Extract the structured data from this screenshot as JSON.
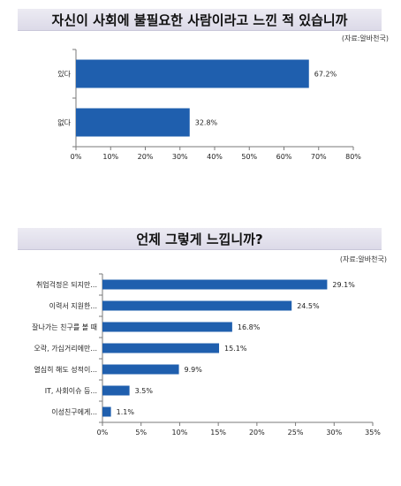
{
  "charts": {
    "colors": {
      "bar": "#1f5fae",
      "axis": "#7a7a7a"
    }
  },
  "chart_data": [
    {
      "type": "bar",
      "orientation": "horizontal",
      "title": "자신이 사회에 불필요한 사람이라고 느낀 적 있습니까",
      "source": "(자료:알바천국)",
      "categories": [
        "있다",
        "없다"
      ],
      "values": [
        67.2,
        32.8
      ],
      "value_labels": [
        "67.2%",
        "32.8%"
      ],
      "xlim": [
        0,
        80
      ],
      "xticks": [
        "0%",
        "10%",
        "20%",
        "30%",
        "40%",
        "50%",
        "60%",
        "70%",
        "80%"
      ],
      "grid": false,
      "legend": "none"
    },
    {
      "type": "bar",
      "orientation": "horizontal",
      "title": "언제 그렇게 느낍니까?",
      "source": "(자료:알바천국)",
      "categories": [
        "취업걱정은 되지만...",
        "이력서 지원한...",
        "잘나가는 친구를 볼 때",
        "오락, 가십거리에만...",
        "열심히 해도 성적이...",
        "IT, 사회이슈 등...",
        "이성친구에게..."
      ],
      "values": [
        29.1,
        24.5,
        16.8,
        15.1,
        9.9,
        3.5,
        1.1
      ],
      "value_labels": [
        "29.1%",
        "24.5%",
        "16.8%",
        "15.1%",
        "9.9%",
        "3.5%",
        "1.1%"
      ],
      "xlim": [
        0,
        35
      ],
      "xticks": [
        "0%",
        "5%",
        "10%",
        "15%",
        "20%",
        "25%",
        "30%",
        "35%"
      ],
      "grid": false,
      "legend": "none"
    }
  ]
}
